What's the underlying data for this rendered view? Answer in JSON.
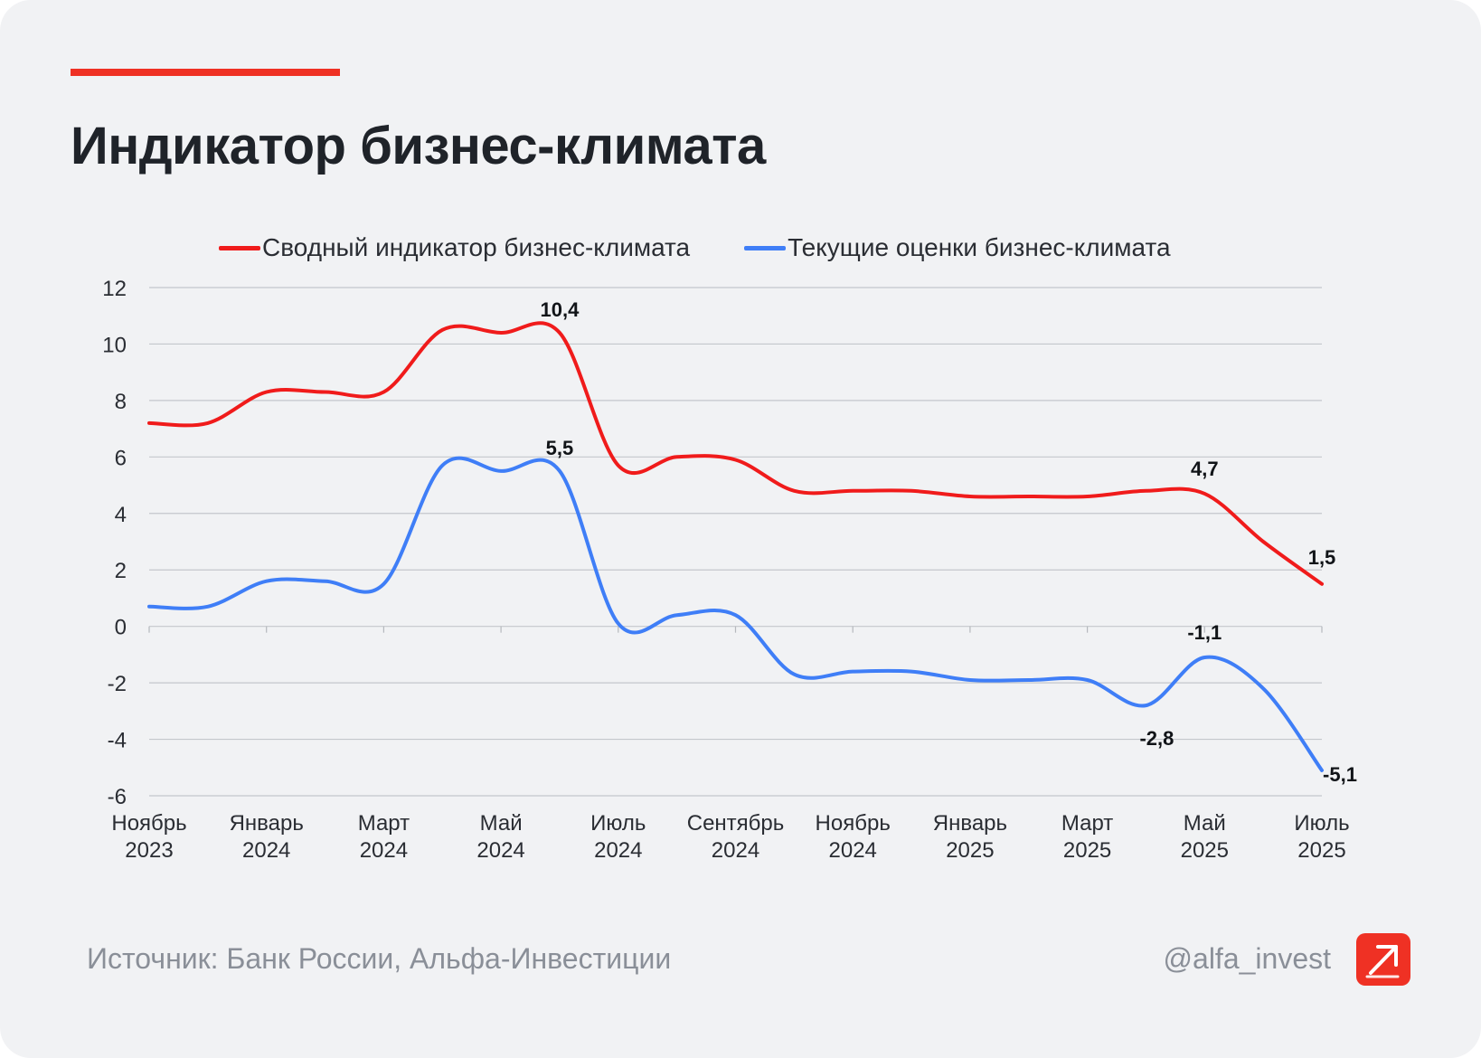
{
  "title": "Индикатор бизнес-климата",
  "footer": {
    "source": "Источник: Банк России, Альфа-Инвестиции",
    "handle": "@alfa_invest"
  },
  "colors": {
    "accent": "#ef3124",
    "series_red": "#f01b1b",
    "series_blue": "#3f7ef7",
    "background": "#f1f2f4"
  },
  "logo_icon": "arrow-up-right-icon",
  "chart_data": {
    "type": "line",
    "title": "",
    "xlabel": "",
    "ylabel": "",
    "ylim": [
      -6,
      12
    ],
    "yticks": [
      12,
      10,
      8,
      6,
      4,
      2,
      0,
      -2,
      -4,
      -6
    ],
    "grid": true,
    "legend_position": "top",
    "x": [
      "2023-11",
      "2023-12",
      "2024-01",
      "2024-02",
      "2024-03",
      "2024-04",
      "2024-05",
      "2024-06",
      "2024-07",
      "2024-08",
      "2024-09",
      "2024-10",
      "2024-11",
      "2024-12",
      "2025-01",
      "2025-02",
      "2025-03",
      "2025-04",
      "2025-05",
      "2025-06",
      "2025-07"
    ],
    "x_tick_labels": [
      {
        "line1": "Ноябрь",
        "line2": "2023"
      },
      {
        "line1": "Январь",
        "line2": "2024"
      },
      {
        "line1": "Март",
        "line2": "2024"
      },
      {
        "line1": "Май",
        "line2": "2024"
      },
      {
        "line1": "Июль",
        "line2": "2024"
      },
      {
        "line1": "Сентябрь",
        "line2": "2024"
      },
      {
        "line1": "Ноябрь",
        "line2": "2024"
      },
      {
        "line1": "Январь",
        "line2": "2025"
      },
      {
        "line1": "Март",
        "line2": "2025"
      },
      {
        "line1": "Май",
        "line2": "2025"
      },
      {
        "line1": "Июль",
        "line2": "2025"
      }
    ],
    "series": [
      {
        "name": "Сводный индикатор бизнес-климата",
        "color": "#f01b1b",
        "values": [
          7.2,
          7.2,
          8.3,
          8.3,
          8.3,
          10.5,
          10.4,
          10.4,
          5.7,
          6.0,
          5.9,
          4.8,
          4.8,
          4.8,
          4.6,
          4.6,
          4.6,
          4.8,
          4.7,
          3.0,
          1.5
        ],
        "data_labels": [
          {
            "index": 7,
            "text": "10,4"
          },
          {
            "index": 18,
            "text": "4,7"
          },
          {
            "index": 20,
            "text": "1,5"
          }
        ]
      },
      {
        "name": "Текущие оценки бизнес-климата",
        "color": "#3f7ef7",
        "values": [
          0.7,
          0.7,
          1.6,
          1.6,
          1.5,
          5.7,
          5.5,
          5.5,
          0.1,
          0.4,
          0.4,
          -1.7,
          -1.6,
          -1.6,
          -1.9,
          -1.9,
          -1.9,
          -2.8,
          -1.1,
          -2.2,
          -5.1
        ],
        "data_labels": [
          {
            "index": 7,
            "text": "5,5"
          },
          {
            "index": 17,
            "text": "-2,8"
          },
          {
            "index": 18,
            "text": "-1,1"
          },
          {
            "index": 20,
            "text": "-5,1"
          }
        ]
      }
    ]
  }
}
